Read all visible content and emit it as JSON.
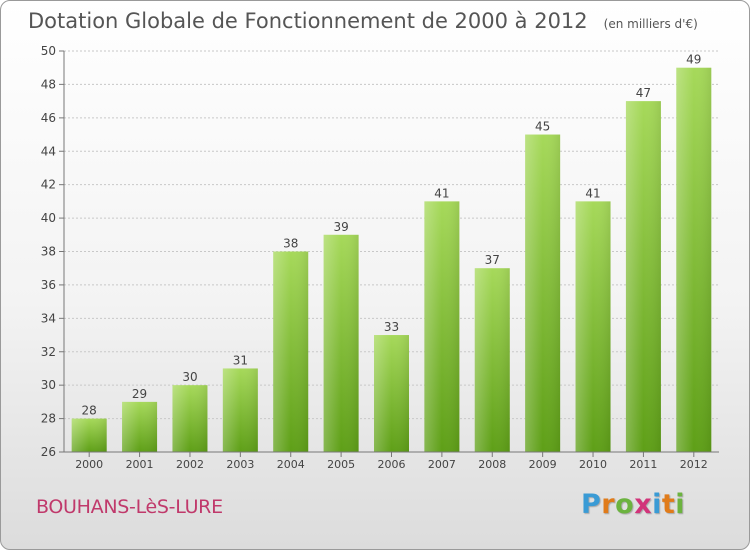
{
  "title": "Dotation Globale de Fonctionnement de 2000 à 2012",
  "subtitle": "(en milliers d'€)",
  "town": "BOUHANS-LèS-LURE",
  "brand": {
    "letters": [
      "P",
      "r",
      "o",
      "x",
      "i",
      "t",
      "i"
    ],
    "colors": [
      "#3a9bd5",
      "#e07b1a",
      "#6cb33f",
      "#d2347a",
      "#3a9bd5",
      "#e07b1a",
      "#6cb33f"
    ]
  },
  "colors": {
    "bar_top": "#a6d95a",
    "bar_bottom": "#5e9f17",
    "title": "#555555",
    "town": "#c0396b"
  },
  "chart_data": {
    "type": "bar",
    "categories": [
      "2000",
      "2001",
      "2002",
      "2003",
      "2004",
      "2005",
      "2006",
      "2007",
      "2008",
      "2009",
      "2010",
      "2011",
      "2012"
    ],
    "values": [
      28,
      29,
      30,
      31,
      38,
      39,
      33,
      41,
      37,
      45,
      41,
      47,
      49
    ],
    "ylim": [
      26,
      50
    ],
    "yticks": [
      26,
      28,
      30,
      32,
      34,
      36,
      38,
      40,
      42,
      44,
      46,
      48,
      50
    ],
    "grid": true,
    "data_labels": true
  }
}
